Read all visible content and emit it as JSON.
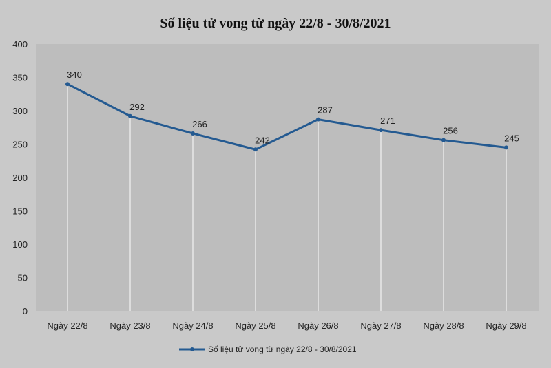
{
  "chart_data": {
    "type": "line",
    "title": "Số liệu tử vong từ ngày 22/8 - 30/8/2021",
    "categories": [
      "Ngày 22/8",
      "Ngày 23/8",
      "Ngày 24/8",
      "Ngày 25/8",
      "Ngày 26/8",
      "Ngày 27/8",
      "Ngày 28/8",
      "Ngày 29/8"
    ],
    "series": [
      {
        "name": "Số liệu tử vong từ ngày 22/8 - 30/8/2021",
        "values": [
          340,
          292,
          266,
          242,
          287,
          271,
          256,
          245
        ],
        "color": "#245a91"
      }
    ],
    "ylim": [
      0,
      400
    ],
    "yticks": [
      0,
      50,
      100,
      150,
      200,
      250,
      300,
      350,
      400
    ],
    "grid": "vertical drop lines",
    "legend": "bottom",
    "data_labels": true
  }
}
